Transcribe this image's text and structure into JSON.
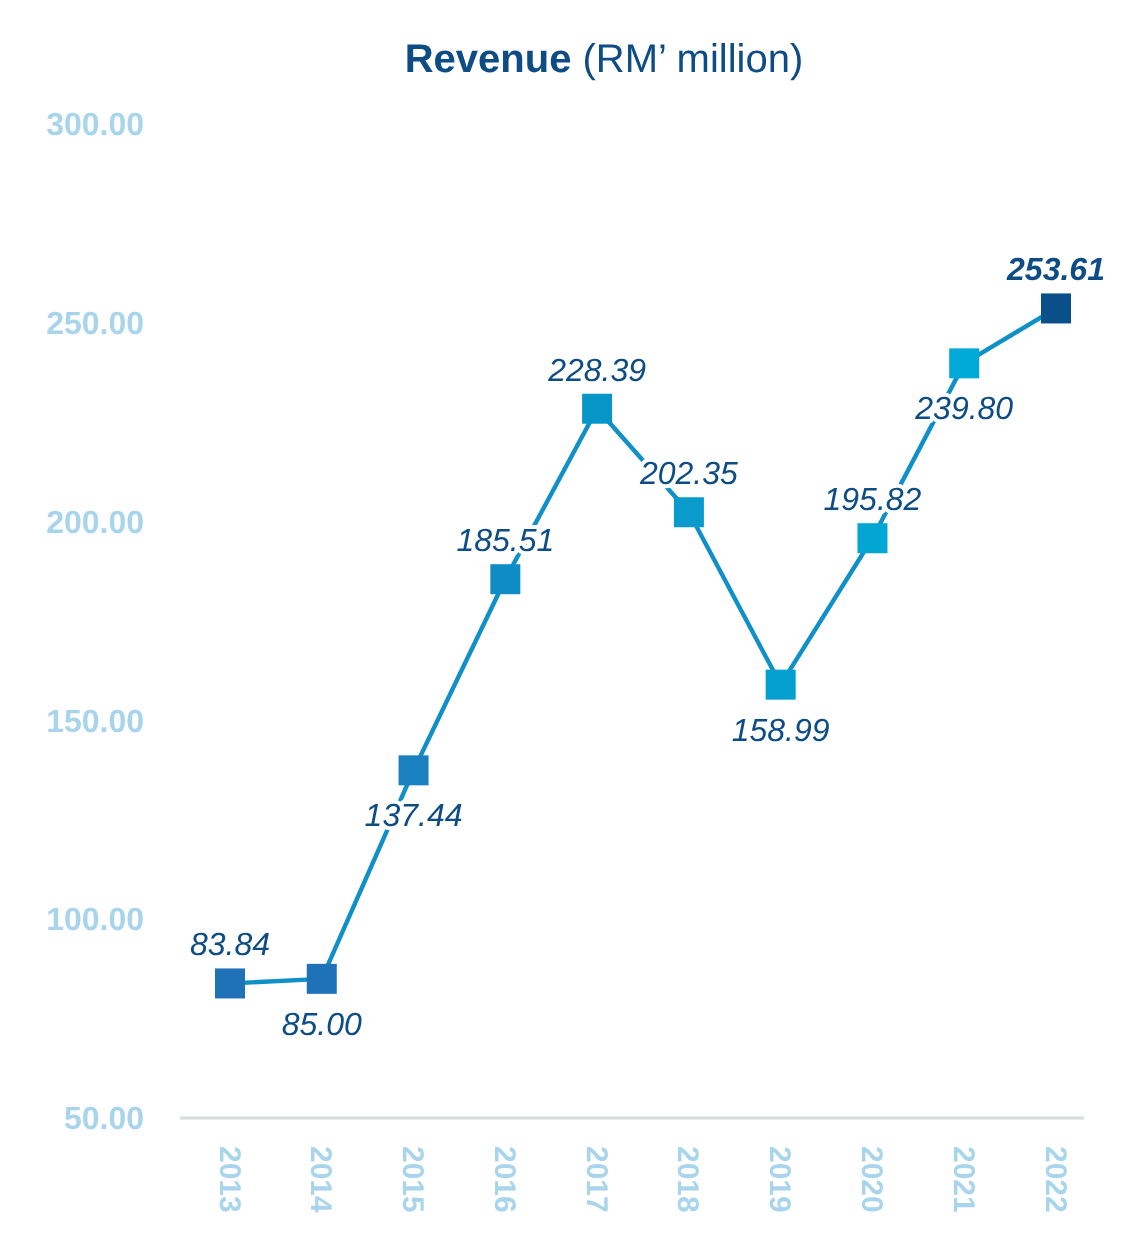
{
  "chart_data": {
    "type": "line",
    "title": "Revenue (RM’ million)",
    "categories": [
      "2013",
      "2014",
      "2015",
      "2016",
      "2017",
      "2018",
      "2019",
      "2020",
      "2021",
      "2022"
    ],
    "series": [
      {
        "color": "#1090c8",
        "colors": [
          "#1f72b8",
          "#1f72b8",
          "#1a80c0",
          "#0f8cc6",
          "#0896c9",
          "#0a9acb",
          "#05a0cf",
          "#03a5d3",
          "#00aad8",
          "#0a4f8a"
        ],
        "values": [
          83.84,
          85.0,
          137.44,
          185.51,
          228.39,
          202.35,
          158.99,
          195.82,
          239.8,
          253.61
        ],
        "value_labels": [
          "83.84",
          "85.00",
          "137.44",
          "185.51",
          "228.39",
          "202.35",
          "158.99",
          "195.82",
          "239.80",
          "253.61"
        ]
      }
    ],
    "ylim": [
      50,
      300
    ],
    "yticks": [
      {
        "value": 50,
        "label": "50.00"
      },
      {
        "value": 100,
        "label": "100.00"
      },
      {
        "value": 150,
        "label": "150.00"
      },
      {
        "value": 200,
        "label": "200.00"
      },
      {
        "value": 250,
        "label": "250.00"
      },
      {
        "value": 300,
        "label": "300.00"
      }
    ],
    "marker": "square",
    "grid": false
  }
}
